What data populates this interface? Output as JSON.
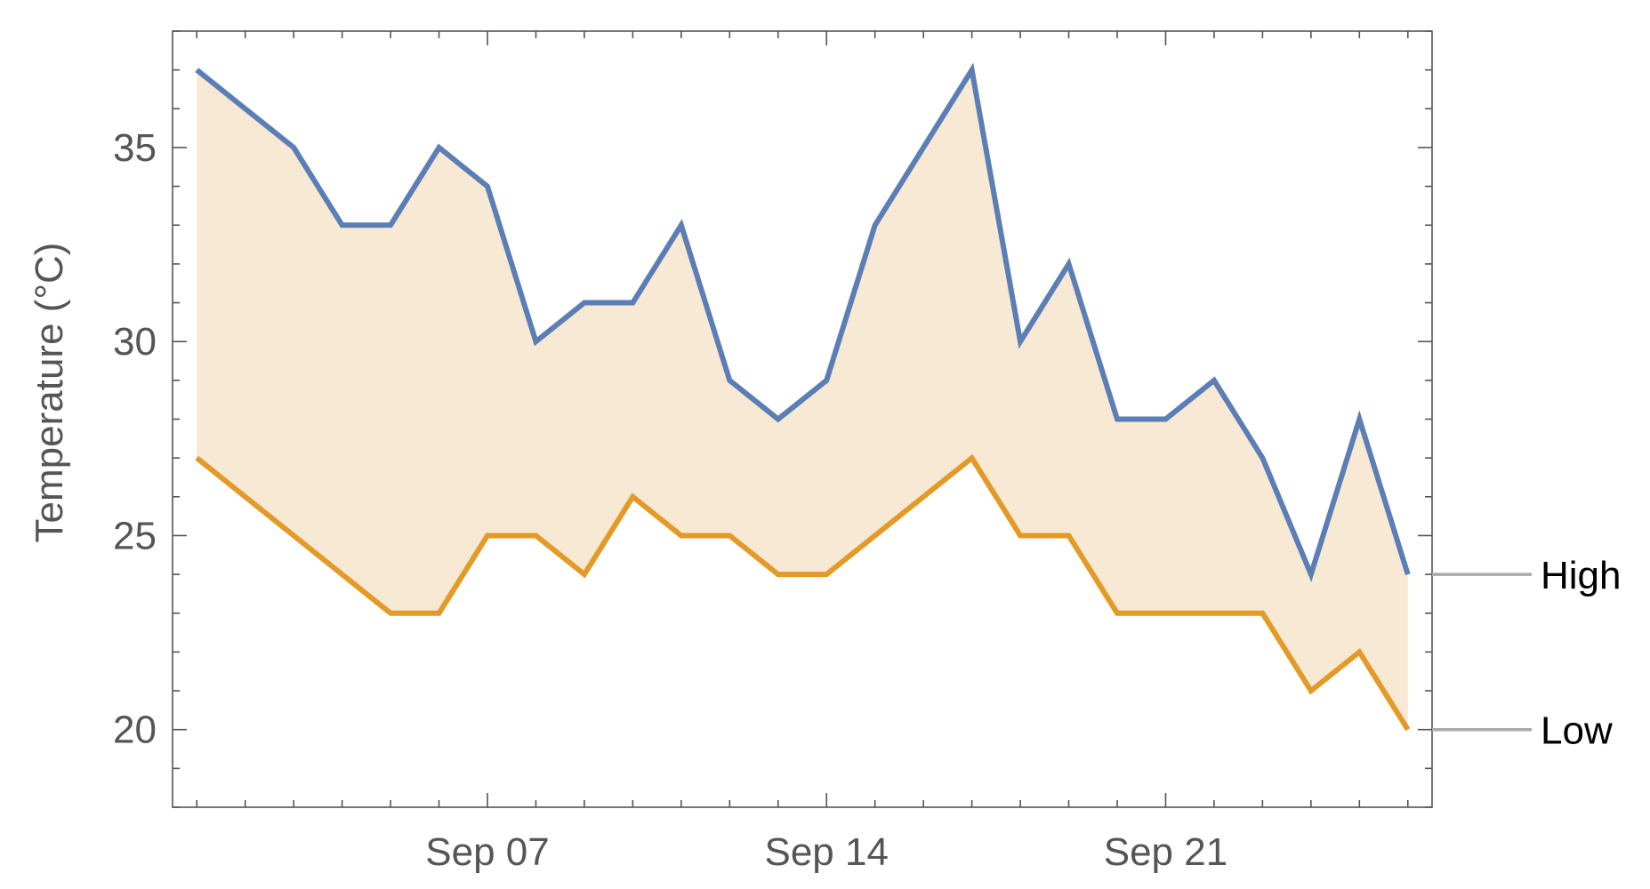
{
  "chart_data": {
    "type": "line",
    "title": "",
    "xlabel": "",
    "ylabel": "Temperature (°C)",
    "x": [
      "2023-09-01",
      "2023-09-02",
      "2023-09-03",
      "2023-09-04",
      "2023-09-05",
      "2023-09-06",
      "2023-09-07",
      "2023-09-08",
      "2023-09-09",
      "2023-09-10",
      "2023-09-11",
      "2023-09-12",
      "2023-09-13",
      "2023-09-14",
      "2023-09-15",
      "2023-09-16",
      "2023-09-17",
      "2023-09-18",
      "2023-09-19",
      "2023-09-20",
      "2023-09-21",
      "2023-09-22",
      "2023-09-23",
      "2023-09-24",
      "2023-09-25",
      "2023-09-26"
    ],
    "xlim": [
      "2023-08-31T12:00",
      "2023-09-26T12:00"
    ],
    "x_ticks": [
      {
        "date": "2023-09-07",
        "label": "Sep 07"
      },
      {
        "date": "2023-09-14",
        "label": "Sep 14"
      },
      {
        "date": "2023-09-21",
        "label": "Sep 21"
      }
    ],
    "ylim": [
      18,
      38
    ],
    "y_ticks": [
      20,
      25,
      30,
      35
    ],
    "series": [
      {
        "name": "High",
        "color": "#5a7eb5",
        "values": [
          37,
          36,
          35,
          33,
          33,
          35,
          34,
          30,
          31,
          31,
          33,
          29,
          28,
          29,
          33,
          35,
          37,
          30,
          32,
          28,
          28,
          29,
          27,
          24,
          28,
          24
        ]
      },
      {
        "name": "Low",
        "color": "#e39a26",
        "values": [
          27,
          26,
          25,
          24,
          23,
          23,
          25,
          25,
          24,
          26,
          25,
          25,
          24,
          24,
          25,
          26,
          27,
          25,
          25,
          23,
          23,
          23,
          23,
          21,
          22,
          20
        ]
      }
    ],
    "band_fill": "#f8e9d4",
    "legend": "right, labels at line ends",
    "grid": false
  }
}
